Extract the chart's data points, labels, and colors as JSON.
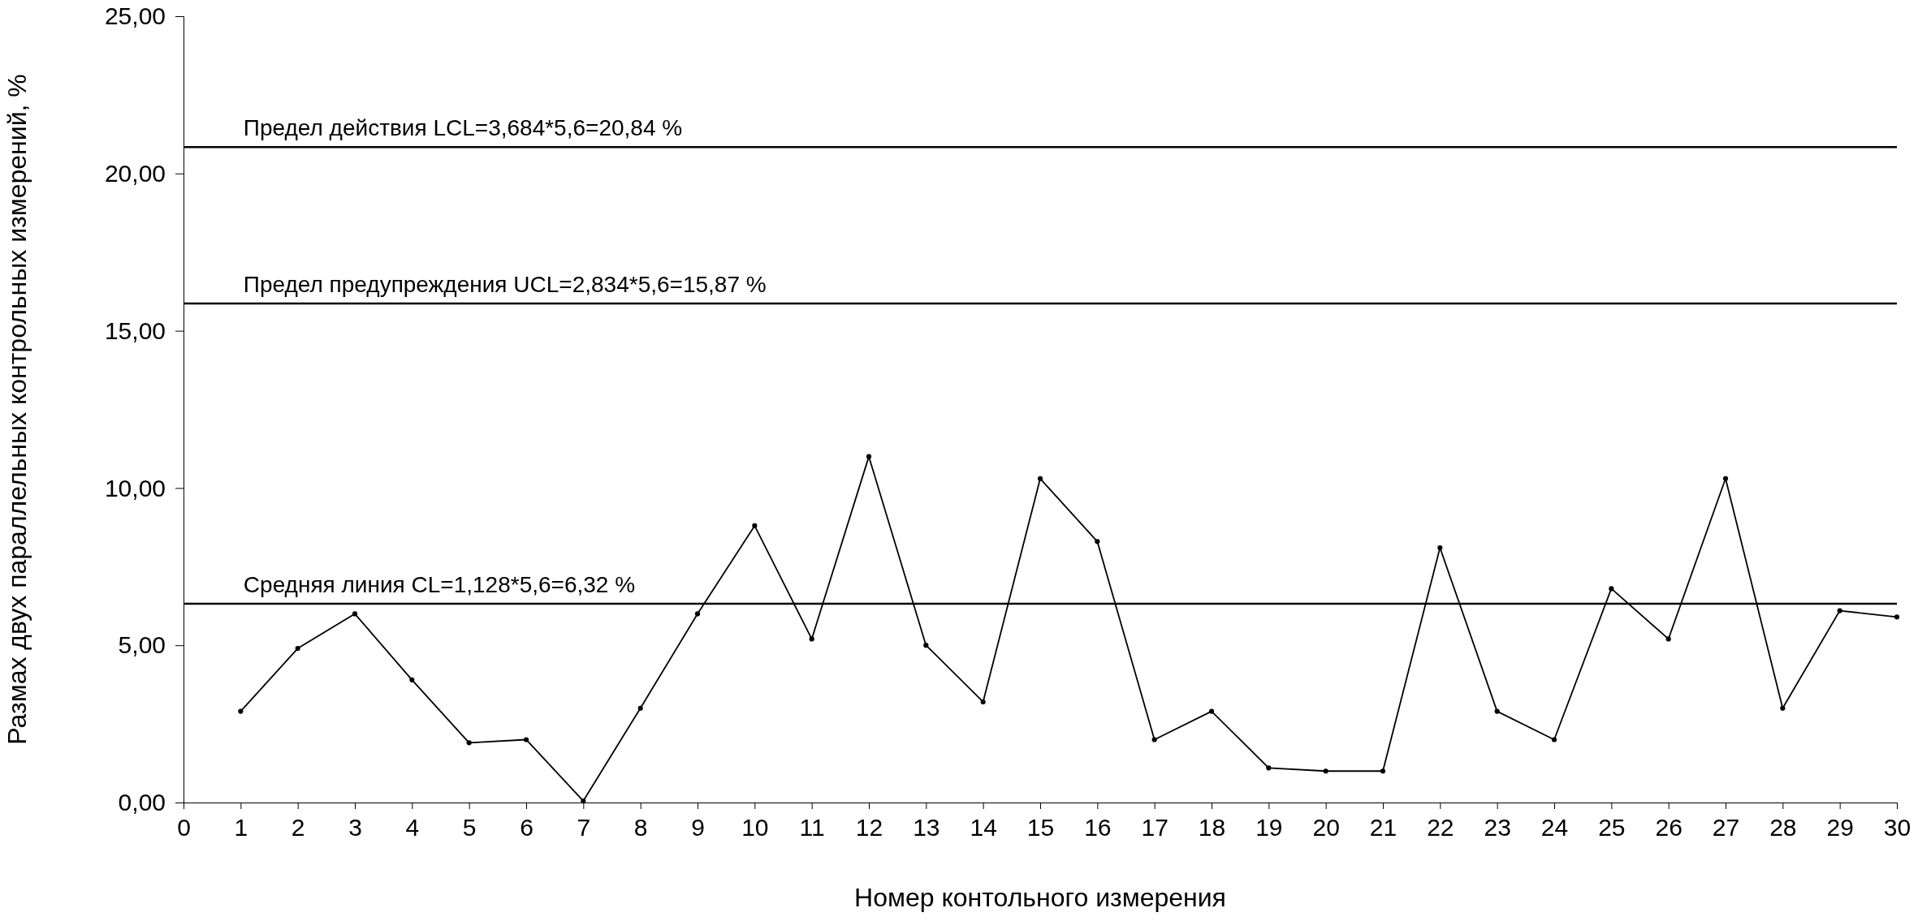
{
  "chart_data": {
    "type": "line",
    "xlabel": "Номер контольного измерения",
    "ylabel": "Размах двух параллельных контрольных измерений, %",
    "x": [
      1,
      2,
      3,
      4,
      5,
      6,
      7,
      8,
      9,
      10,
      11,
      12,
      13,
      14,
      15,
      16,
      17,
      18,
      19,
      20,
      21,
      22,
      23,
      24,
      25,
      26,
      27,
      28,
      29,
      30
    ],
    "series": [
      {
        "color": "#000000",
        "values": [
          2.9,
          4.9,
          6.0,
          3.9,
          1.9,
          2.0,
          0.05,
          3.0,
          6.0,
          8.8,
          5.2,
          11.0,
          5.0,
          3.2,
          10.3,
          8.3,
          2.0,
          2.9,
          1.1,
          1.0,
          1.0,
          8.1,
          2.9,
          2.0,
          6.8,
          5.2,
          10.3,
          3.0,
          6.1,
          5.9
        ]
      }
    ],
    "xlim": [
      0,
      30
    ],
    "xticks": [
      0,
      1,
      2,
      3,
      4,
      5,
      6,
      7,
      8,
      9,
      10,
      11,
      12,
      13,
      14,
      15,
      16,
      17,
      18,
      19,
      20,
      21,
      22,
      23,
      24,
      25,
      26,
      27,
      28,
      29,
      30
    ],
    "ylim": [
      0,
      25
    ],
    "yticks": [
      {
        "value": 0,
        "label": "0,00"
      },
      {
        "value": 5,
        "label": "5,00"
      },
      {
        "value": 10,
        "label": "10,00"
      },
      {
        "value": 15,
        "label": "15,00"
      },
      {
        "value": 20,
        "label": "20,00"
      },
      {
        "value": 25,
        "label": "25,00"
      }
    ],
    "ref_lines": [
      {
        "axis": "y",
        "value": 20.84,
        "label": "Предел действия LCL=3,684*5,6=20,84 %",
        "color": "#000000"
      },
      {
        "axis": "y",
        "value": 15.87,
        "label": "Предел предупреждения UCL=2,834*5,6=15,87 %",
        "color": "#000000"
      },
      {
        "axis": "y",
        "value": 6.32,
        "label": "Средняя линия CL=1,128*5,6=6,32 %",
        "color": "#000000"
      }
    ],
    "grid": false,
    "marker": "circle",
    "line_style": "solid"
  }
}
